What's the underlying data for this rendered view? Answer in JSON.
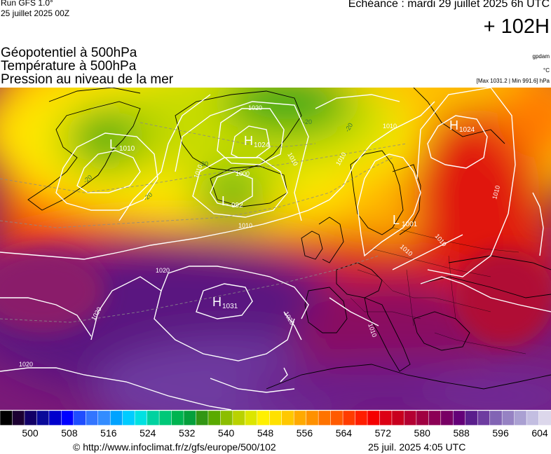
{
  "header": {
    "model_run": "Run GFS 1.0°",
    "run_date": "25 juillet 2025 00Z",
    "echeance": "Echéance : mardi 29 juillet 2025 6h UTC",
    "forecast_hour": "+ 102H",
    "layers": [
      "Géopotentiel à 500hPa",
      "Température à 500hPa",
      "Pression au niveau de la mer"
    ],
    "unit_geopotential": "gpdam",
    "unit_temperature": "°C",
    "pressure_range": "[Max 1031.2 | Min 991.6] hPa"
  },
  "map": {
    "centers": [
      {
        "type": "L",
        "value": "1010"
      },
      {
        "type": "H",
        "value": "1024"
      },
      {
        "type": "L",
        "value": "992"
      },
      {
        "type": "H",
        "value": "1024"
      },
      {
        "type": "L",
        "value": "1001"
      },
      {
        "type": "H",
        "value": "1031"
      }
    ],
    "isobar_labels": [
      "1020",
      "1010",
      "1000",
      "1010",
      "1010",
      "1010",
      "1010",
      "1010",
      "1010",
      "1010",
      "1020",
      "1020",
      "1020",
      "1010",
      "1020"
    ],
    "temp_labels": [
      "-20",
      "-20",
      "-20",
      "-20",
      "-20"
    ]
  },
  "colorbar": {
    "colors": [
      "#000000",
      "#1c0032",
      "#120066",
      "#0a0a99",
      "#0000cc",
      "#0000ff",
      "#1f4dff",
      "#3375ff",
      "#338cff",
      "#00a3ff",
      "#00ccff",
      "#00e1e1",
      "#00d2a0",
      "#00c878",
      "#00b450",
      "#05a03c",
      "#329614",
      "#5aaa00",
      "#8cbe00",
      "#b9d200",
      "#dce600",
      "#fff000",
      "#ffe100",
      "#ffc800",
      "#ffaa00",
      "#ff9100",
      "#ff7300",
      "#ff5a00",
      "#ff3c00",
      "#ff1e00",
      "#f50000",
      "#dc0014",
      "#c8001e",
      "#b40032",
      "#a00041",
      "#8c0055",
      "#780064",
      "#640078",
      "#5a1e8c",
      "#6e3ca0",
      "#8264b4",
      "#9682c3",
      "#aaa0d2",
      "#c3bee1",
      "#dcd7eb"
    ],
    "ticks": [
      "500",
      "508",
      "516",
      "524",
      "532",
      "540",
      "548",
      "556",
      "564",
      "572",
      "580",
      "588",
      "596",
      "604"
    ]
  },
  "footer": {
    "source": "© http://www.infoclimat.fr/z/gfs/europe/500/102",
    "generated": "25 juil. 2025  4:05 UTC"
  }
}
